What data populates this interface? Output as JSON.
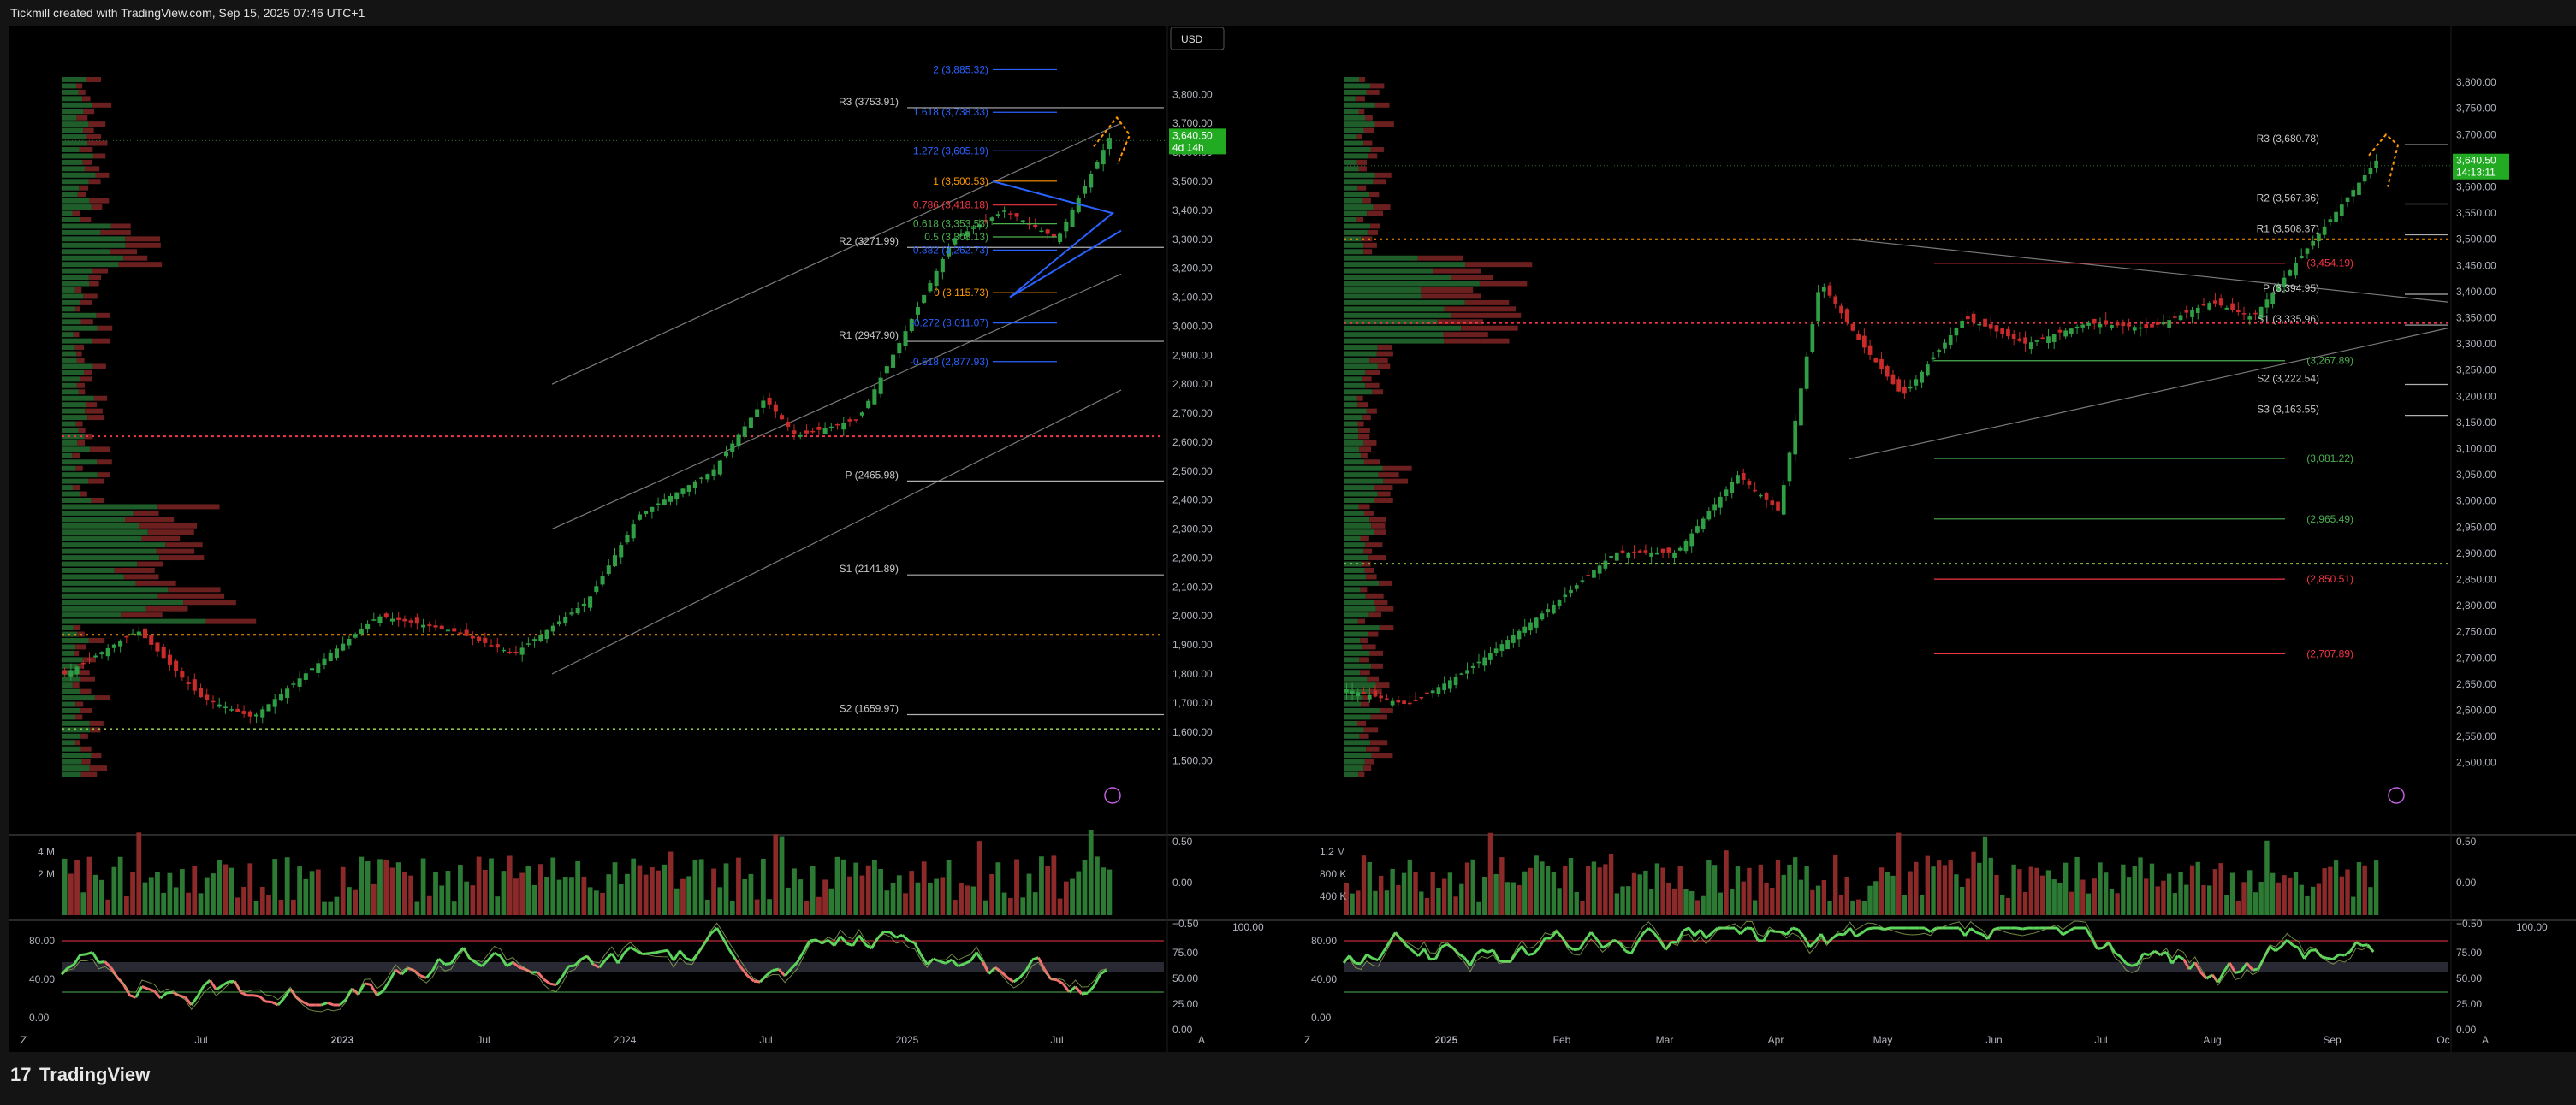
{
  "header": {
    "text": "Tickmill created with TradingView.com, Sep 15, 2025 07:46 UTC+1"
  },
  "footer": {
    "brand": "TradingView",
    "brand_mark": "17"
  },
  "colors": {
    "up": "#2f9e44",
    "down": "#c92a2a",
    "pivot_line": "#b0b0b0",
    "fib_blue": "#2962ff",
    "fib_orange": "#ff9800",
    "fib_red": "#f23645",
    "fib_green": "#4caf50",
    "price_tag": "#22ab22",
    "poc_line": "#f23645",
    "vah_line": "#ff9800",
    "val_line": "#8bc34a",
    "rsi_green": "#5dd55d",
    "rsi_red": "#f07070",
    "wedge": "#2962ff",
    "trend": "#7a7a7a"
  },
  "chart_data": [
    {
      "type": "candlestick",
      "panel": "left-weekly",
      "currency_label": "USD",
      "price_axis": [
        3800,
        3700,
        3600,
        3500,
        3400,
        3300,
        3200,
        3100,
        3000,
        2900,
        2800,
        2700,
        2600,
        2500,
        2400,
        2300,
        2200,
        2100,
        2000,
        1900,
        1800,
        1700,
        1600,
        1500
      ],
      "ylim": [
        1440,
        3860
      ],
      "time_axis": [
        "Jul",
        "2023",
        "Jul",
        "2024",
        "Jul",
        "2025",
        "Jul"
      ],
      "last_price": "3,640.50",
      "countdown": "4d 14h",
      "pivot_levels": [
        {
          "label": "R3 (3753.91)",
          "value": 3753.91
        },
        {
          "label": "R2 (3271.99)",
          "value": 3271.99
        },
        {
          "label": "R1 (2947.90)",
          "value": 2947.9
        },
        {
          "label": "P (2465.98)",
          "value": 2465.98
        },
        {
          "label": "S1 (2141.89)",
          "value": 2141.89
        },
        {
          "label": "S2 (1659.97)",
          "value": 1659.97
        }
      ],
      "fib_levels": [
        {
          "label": "2 (3,885.32)",
          "value": 3885.32,
          "color": "blue"
        },
        {
          "label": "1.618 (3,738.33)",
          "value": 3738.33,
          "color": "blue"
        },
        {
          "label": "1.272 (3,605.19)",
          "value": 3605.19,
          "color": "blue"
        },
        {
          "label": "1 (3,500.53)",
          "value": 3500.53,
          "color": "orange"
        },
        {
          "label": "0.786 (3,418.18)",
          "value": 3418.18,
          "color": "red"
        },
        {
          "label": "0.618 (3,353.53)",
          "value": 3353.53,
          "color": "green"
        },
        {
          "label": "0.5 (3,308.13)",
          "value": 3308.13,
          "color": "green"
        },
        {
          "label": "0.382 (3,262.73)",
          "value": 3262.73,
          "color": "blue"
        },
        {
          "label": "0 (3,115.73)",
          "value": 3115.73,
          "color": "orange"
        },
        {
          "label": "-0.272 (3,011.07)",
          "value": 3011.07,
          "color": "blue"
        },
        {
          "label": "-0.618 (2,877.93)",
          "value": 2877.93,
          "color": "blue"
        }
      ],
      "volume_axis": [
        "4 M",
        "2 M"
      ],
      "oscillator_axis_left": [
        "80.00",
        "40.00",
        "0.00"
      ],
      "oscillator_axis_right": [
        "100.00",
        "75.00",
        "50.00",
        "25.00",
        "0.00",
        "−100.00"
      ],
      "macd_axis": [
        "0.50",
        "0.00",
        "−0.50"
      ]
    },
    {
      "type": "candlestick",
      "panel": "right-daily",
      "price_axis": [
        3800,
        3750,
        3700,
        3650,
        3600,
        3550,
        3500,
        3450,
        3400,
        3350,
        3300,
        3250,
        3200,
        3150,
        3100,
        3050,
        3000,
        2950,
        2900,
        2850,
        2800,
        2750,
        2700,
        2650,
        2600,
        2550,
        2500
      ],
      "ylim": [
        2470,
        3810
      ],
      "time_axis": [
        "2025",
        "Feb",
        "Mar",
        "Apr",
        "May",
        "Jun",
        "Jul",
        "Aug",
        "Sep",
        "Oc"
      ],
      "last_price": "3,640.50",
      "countdown": "14:13:11",
      "pivot_levels": [
        {
          "label": "R3 (3,680.78)",
          "value": 3680.78
        },
        {
          "label": "R2 (3,567.36)",
          "value": 3567.36
        },
        {
          "label": "R1 (3,508.37)",
          "value": 3508.37
        },
        {
          "label": "P (3,394.95)",
          "value": 3394.95
        },
        {
          "label": "S1 (3,335.96)",
          "value": 3335.96
        },
        {
          "label": "S2 (3,222.54)",
          "value": 3222.54
        },
        {
          "label": "S3 (3,163.55)",
          "value": 3163.55
        }
      ],
      "fib_levels": [
        {
          "label": "(3,454.19)",
          "value": 3454.19,
          "color": "red"
        },
        {
          "label": "(3,267.89)",
          "value": 3267.89,
          "color": "green"
        },
        {
          "label": "(3,081.22)",
          "value": 3081.22,
          "color": "green"
        },
        {
          "label": "(2,965.49)",
          "value": 2965.49,
          "color": "green"
        },
        {
          "label": "(2,850.51)",
          "value": 2850.51,
          "color": "red"
        },
        {
          "label": "(2,707.89)",
          "value": 2707.89,
          "color": "red"
        }
      ],
      "volume_axis": [
        "1.2 M",
        "800 K",
        "400 K"
      ],
      "oscillator_axis_left": [
        "80.00",
        "40.00",
        "0.00"
      ],
      "oscillator_axis_right": [
        "100.00",
        "75.00",
        "50.00",
        "25.00",
        "0.00",
        "−100.00"
      ],
      "macd_axis": [
        "0.50",
        "0.00",
        "−0.50"
      ]
    }
  ]
}
